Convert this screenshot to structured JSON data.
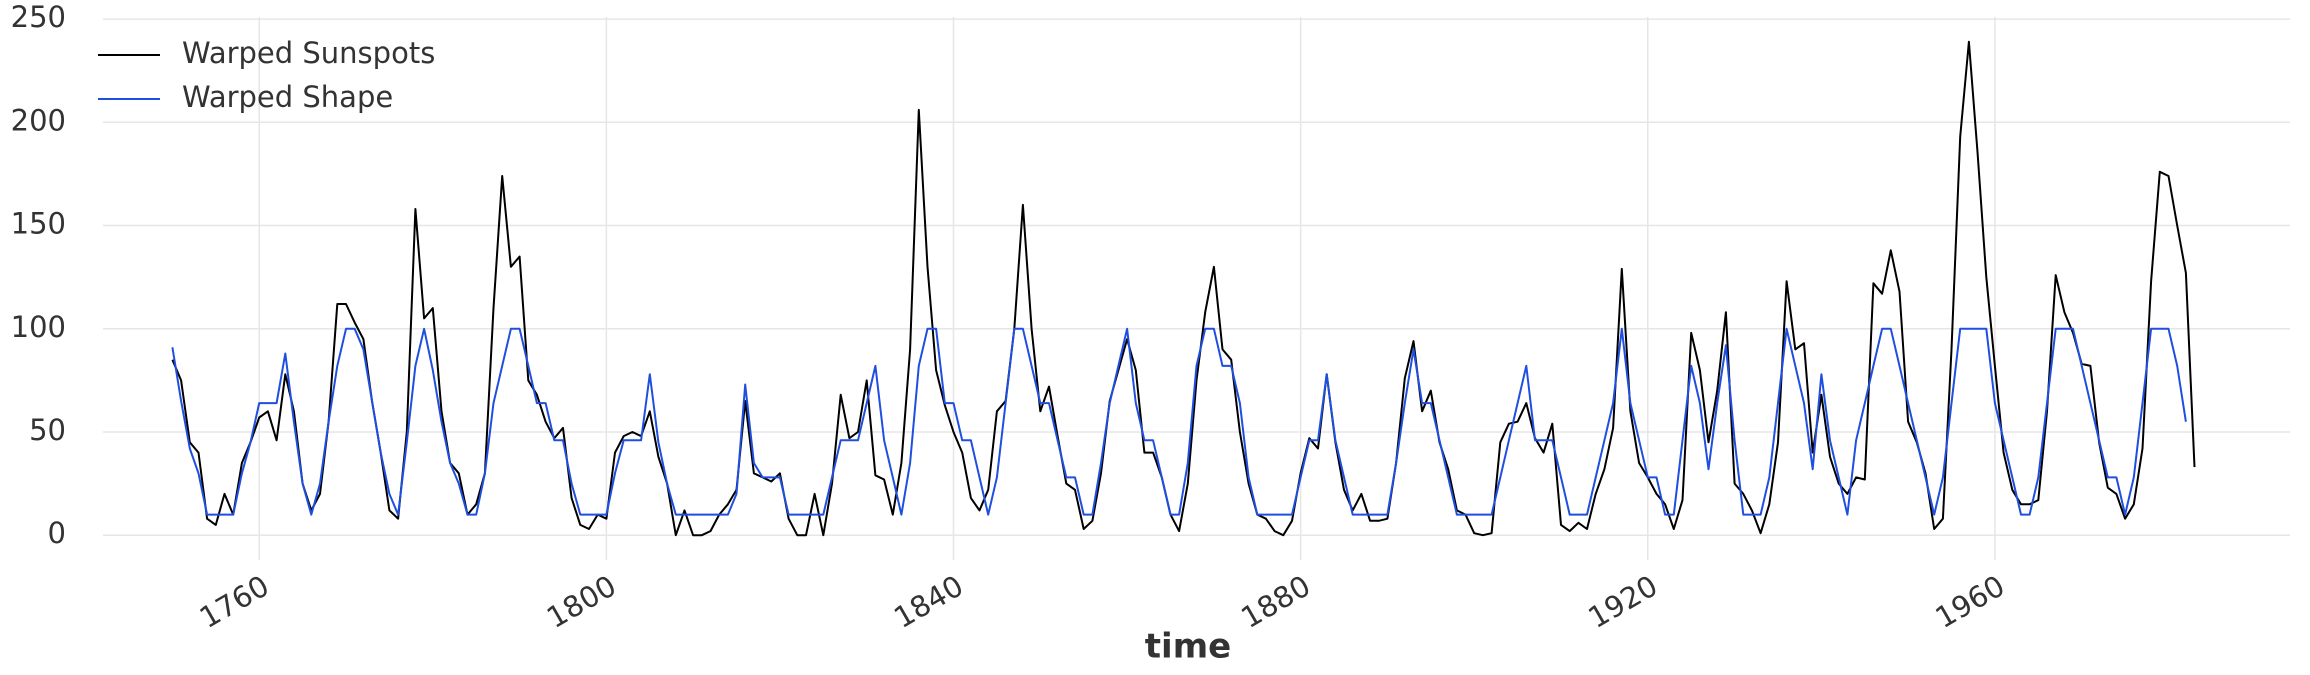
{
  "chart_data": {
    "type": "line",
    "xlabel": "time",
    "x": [
      1750,
      1751,
      1752,
      1753,
      1754,
      1755,
      1756,
      1757,
      1758,
      1759,
      1760,
      1761,
      1762,
      1763,
      1764,
      1765,
      1766,
      1767,
      1768,
      1769,
      1770,
      1771,
      1772,
      1773,
      1774,
      1775,
      1776,
      1777,
      1778,
      1779,
      1780,
      1781,
      1782,
      1783,
      1784,
      1785,
      1786,
      1787,
      1788,
      1789,
      1790,
      1791,
      1792,
      1793,
      1794,
      1795,
      1796,
      1797,
      1798,
      1799,
      1800,
      1801,
      1802,
      1803,
      1804,
      1805,
      1806,
      1807,
      1808,
      1809,
      1810,
      1811,
      1812,
      1813,
      1814,
      1815,
      1816,
      1817,
      1818,
      1819,
      1820,
      1821,
      1822,
      1823,
      1824,
      1825,
      1826,
      1827,
      1828,
      1829,
      1830,
      1831,
      1832,
      1833,
      1834,
      1835,
      1836,
      1837,
      1838,
      1839,
      1840,
      1841,
      1842,
      1843,
      1844,
      1845,
      1846,
      1847,
      1848,
      1849,
      1850,
      1851,
      1852,
      1853,
      1854,
      1855,
      1856,
      1857,
      1858,
      1859,
      1860,
      1861,
      1862,
      1863,
      1864,
      1865,
      1866,
      1867,
      1868,
      1869,
      1870,
      1871,
      1872,
      1873,
      1874,
      1875,
      1876,
      1877,
      1878,
      1879,
      1880,
      1881,
      1882,
      1883,
      1884,
      1885,
      1886,
      1887,
      1888,
      1889,
      1890,
      1891,
      1892,
      1893,
      1894,
      1895,
      1896,
      1897,
      1898,
      1899,
      1900,
      1901,
      1902,
      1903,
      1904,
      1905,
      1906,
      1907,
      1908,
      1909,
      1910,
      1911,
      1912,
      1913,
      1914,
      1915,
      1916,
      1917,
      1918,
      1919,
      1920,
      1921,
      1922,
      1923,
      1924,
      1925,
      1926,
      1927,
      1928,
      1929,
      1930,
      1931,
      1932,
      1933,
      1934,
      1935,
      1936,
      1937,
      1938,
      1939,
      1940,
      1941,
      1942,
      1943,
      1944,
      1945,
      1946,
      1947,
      1948,
      1949,
      1950,
      1951,
      1952,
      1953,
      1954,
      1955,
      1956,
      1957,
      1958,
      1959,
      1960,
      1961,
      1962,
      1963,
      1964,
      1965,
      1966,
      1967,
      1968,
      1969,
      1970,
      1971,
      1972,
      1973,
      1974,
      1975,
      1976,
      1977,
      1978,
      1979,
      1980,
      1981,
      1982,
      1983
    ],
    "series": [
      {
        "name": "Warped Sunspots",
        "color": "#000000",
        "values": [
          85,
          75,
          45,
          40,
          8,
          5,
          20,
          10,
          35,
          45,
          57,
          60,
          46,
          78,
          60,
          25,
          12,
          20,
          55,
          112,
          112,
          103,
          95,
          65,
          40,
          12,
          8,
          50,
          158,
          105,
          110,
          60,
          35,
          30,
          10,
          15,
          30,
          110,
          174,
          130,
          135,
          75,
          68,
          55,
          47,
          52,
          18,
          5,
          3,
          10,
          8,
          40,
          48,
          50,
          48,
          60,
          38,
          25,
          0,
          12,
          0,
          0,
          2,
          10,
          15,
          22,
          65,
          30,
          28,
          26,
          30,
          8,
          0,
          0,
          20,
          0,
          25,
          68,
          47,
          50,
          75,
          29,
          27,
          10,
          35,
          90,
          206,
          130,
          80,
          63,
          50,
          40,
          18,
          12,
          22,
          60,
          65,
          100,
          160,
          100,
          60,
          72,
          48,
          25,
          22,
          3,
          7,
          30,
          65,
          80,
          95,
          80,
          40,
          40,
          28,
          10,
          2,
          25,
          75,
          108,
          130,
          90,
          85,
          50,
          25,
          10,
          8,
          2,
          0,
          7,
          30,
          47,
          42,
          78,
          45,
          22,
          12,
          20,
          7,
          7,
          8,
          35,
          76,
          94,
          60,
          70,
          45,
          32,
          12,
          10,
          1,
          0,
          1,
          45,
          54,
          55,
          64,
          47,
          40,
          54,
          5,
          2,
          6,
          3,
          20,
          32,
          52,
          129,
          60,
          35,
          28,
          20,
          15,
          3,
          17,
          98,
          80,
          45,
          70,
          108,
          25,
          20,
          12,
          1,
          15,
          45,
          123,
          90,
          93,
          40,
          68,
          38,
          25,
          20,
          28,
          27,
          122,
          117,
          138,
          118,
          55,
          45,
          30,
          3,
          8,
          90,
          193,
          239,
          185,
          125,
          82,
          40,
          22,
          15,
          15,
          17,
          60,
          126,
          108,
          98,
          83,
          82,
          45,
          23,
          20,
          8,
          15,
          42,
          123,
          176,
          174,
          150,
          127,
          33
        ]
      },
      {
        "name": "Warped Shape",
        "color": "#1f4fe0",
        "values": [
          91,
          65,
          42,
          30,
          10,
          10,
          10,
          10,
          30,
          45,
          64,
          64,
          64,
          88,
          55,
          25,
          10,
          25,
          55,
          82,
          100,
          100,
          90,
          65,
          40,
          20,
          10,
          45,
          82,
          100,
          80,
          55,
          35,
          25,
          10,
          10,
          30,
          64,
          82,
          100,
          100,
          82,
          64,
          64,
          46,
          46,
          25,
          10,
          10,
          10,
          10,
          30,
          46,
          46,
          46,
          78,
          45,
          25,
          10,
          10,
          10,
          10,
          10,
          10,
          10,
          20,
          73,
          35,
          28,
          28,
          28,
          10,
          10,
          10,
          10,
          10,
          28,
          46,
          46,
          46,
          64,
          82,
          46,
          28,
          10,
          35,
          82,
          100,
          100,
          64,
          64,
          46,
          46,
          28,
          10,
          28,
          64,
          100,
          100,
          82,
          64,
          64,
          46,
          28,
          28,
          10,
          10,
          35,
          64,
          82,
          100,
          64,
          46,
          46,
          28,
          10,
          10,
          35,
          82,
          100,
          100,
          82,
          82,
          64,
          28,
          10,
          10,
          10,
          10,
          10,
          28,
          46,
          46,
          78,
          46,
          28,
          10,
          10,
          10,
          10,
          10,
          35,
          64,
          90,
          64,
          64,
          46,
          28,
          10,
          10,
          10,
          10,
          10,
          28,
          46,
          64,
          82,
          46,
          46,
          46,
          28,
          10,
          10,
          10,
          28,
          46,
          64,
          100,
          64,
          46,
          28,
          28,
          10,
          10,
          46,
          82,
          64,
          32,
          64,
          92,
          46,
          10,
          10,
          10,
          28,
          64,
          100,
          82,
          64,
          32,
          78,
          46,
          28,
          10,
          46,
          64,
          82,
          100,
          100,
          82,
          64,
          46,
          28,
          10,
          28,
          64,
          100,
          100,
          100,
          100,
          64,
          46,
          28,
          10,
          10,
          28,
          64,
          100,
          100,
          100,
          82,
          64,
          46,
          28,
          28,
          10,
          28,
          64,
          100,
          100,
          100,
          82,
          55,
          null
        ]
      }
    ],
    "xlim": [
      1742,
      1994
    ],
    "xticks": [
      1760,
      1800,
      1840,
      1880,
      1920,
      1960
    ],
    "ylim": [
      -12,
      251
    ],
    "yticks": [
      0,
      50,
      100,
      150,
      200,
      250
    ],
    "grid": true,
    "legend": "upper left"
  }
}
